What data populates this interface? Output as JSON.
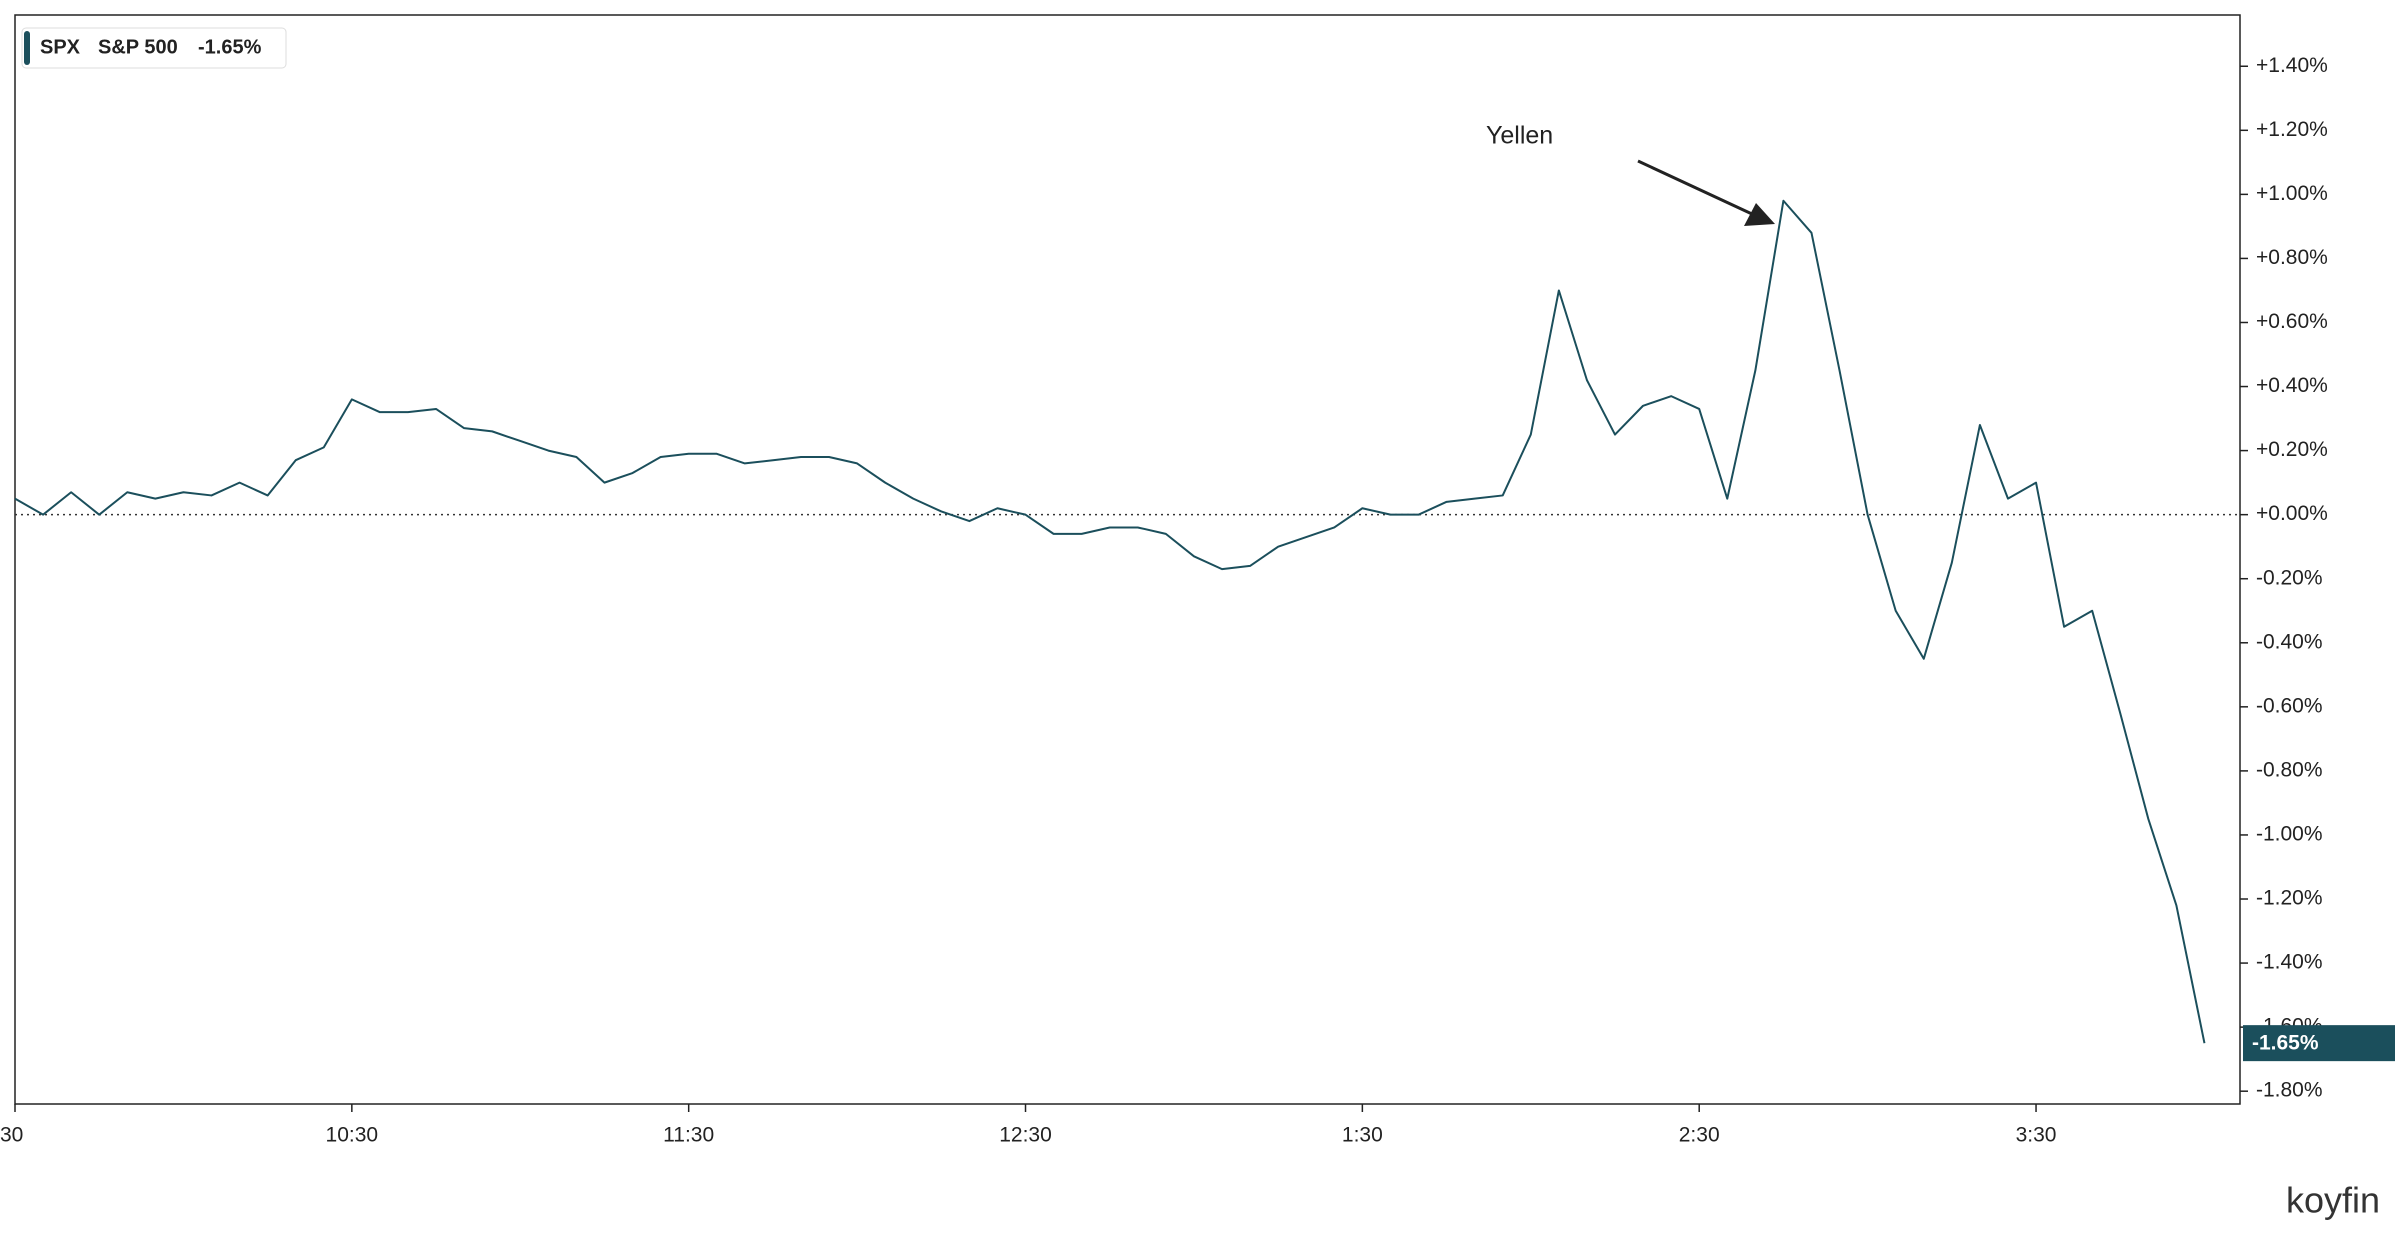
{
  "chart_data": {
    "type": "line",
    "ticker": "SPX",
    "legend_change": "-1.65%",
    "last_value_label": "-1.65%",
    "annotation": "Yellen",
    "watermark": "koyfin",
    "categories": [
      "30",
      null,
      null,
      null,
      null,
      null,
      null,
      null,
      null,
      null,
      null,
      null,
      "10:30",
      null,
      null,
      null,
      null,
      null,
      null,
      null,
      null,
      null,
      null,
      null,
      "11:30",
      null,
      null,
      null,
      null,
      null,
      null,
      null,
      null,
      null,
      null,
      null,
      "12:30",
      null,
      null,
      null,
      null,
      null,
      null,
      null,
      null,
      null,
      null,
      null,
      "1:30",
      null,
      null,
      null,
      null,
      null,
      null,
      null,
      null,
      null,
      null,
      null,
      "2:30",
      null,
      null,
      null,
      null,
      null,
      null,
      null,
      null,
      null,
      null,
      null,
      "3:30",
      null,
      null,
      null,
      null,
      null,
      null
    ],
    "series": [
      {
        "name": "S&P 500",
        "color": "#1b4f5c",
        "values": [
          0.05,
          0.0,
          0.07,
          0.0,
          0.07,
          0.05,
          0.07,
          0.06,
          0.1,
          0.06,
          0.17,
          0.21,
          0.36,
          0.32,
          0.32,
          0.33,
          0.27,
          0.26,
          0.23,
          0.2,
          0.18,
          0.1,
          0.13,
          0.18,
          0.19,
          0.19,
          0.16,
          0.17,
          0.18,
          0.18,
          0.16,
          0.1,
          0.05,
          0.01,
          -0.02,
          0.02,
          0.0,
          -0.06,
          -0.06,
          -0.04,
          -0.04,
          -0.06,
          -0.13,
          -0.17,
          -0.16,
          -0.1,
          -0.07,
          -0.04,
          0.02,
          0.0,
          0.0,
          0.04,
          0.05,
          0.06,
          0.25,
          0.7,
          0.42,
          0.25,
          0.34,
          0.37,
          0.33,
          0.05,
          0.45,
          0.98,
          0.88,
          0.45,
          0.0,
          -0.3,
          -0.45,
          -0.15,
          0.28,
          0.05,
          0.1,
          -0.35,
          -0.3,
          -0.62,
          -0.95,
          -1.22,
          -1.65
        ]
      }
    ],
    "ylim": [
      -1.84,
      1.56
    ],
    "yticks": [
      {
        "value": 1.4,
        "label": "+1.40%"
      },
      {
        "value": 1.2,
        "label": "+1.20%"
      },
      {
        "value": 1.0,
        "label": "+1.00%"
      },
      {
        "value": 0.8,
        "label": "+0.80%"
      },
      {
        "value": 0.6,
        "label": "+0.60%"
      },
      {
        "value": 0.4,
        "label": "+0.40%"
      },
      {
        "value": 0.2,
        "label": "+0.20%"
      },
      {
        "value": 0,
        "label": "+0.00%"
      },
      {
        "value": -0.2,
        "label": "-0.20%"
      },
      {
        "value": -0.4,
        "label": "-0.40%"
      },
      {
        "value": -0.6,
        "label": "-0.60%"
      },
      {
        "value": -0.8,
        "label": "-0.80%"
      },
      {
        "value": -1.0,
        "label": "-1.00%"
      },
      {
        "value": -1.2,
        "label": "-1.20%"
      },
      {
        "value": -1.4,
        "label": "-1.40%"
      },
      {
        "value": -1.6,
        "label": "-1.60%"
      },
      {
        "value": -1.8,
        "label": "-1.80%"
      }
    ],
    "reference_line": 0,
    "grid": false
  }
}
